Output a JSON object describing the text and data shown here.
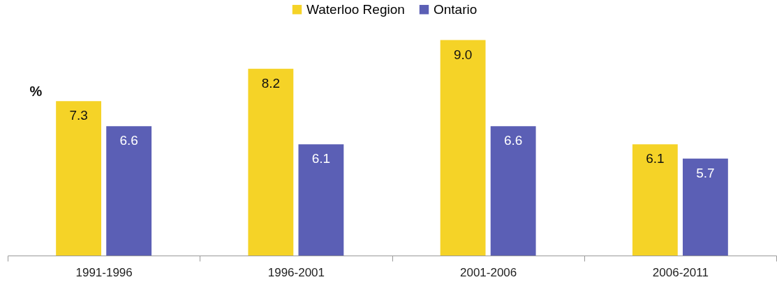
{
  "chart_data": {
    "type": "bar",
    "ylabel": "%",
    "categories": [
      "1991-1996",
      "1996-2001",
      "2001-2006",
      "2006-2011"
    ],
    "series": [
      {
        "name": "Waterloo Region",
        "color": "#f5d327",
        "values": [
          7.3,
          8.2,
          9.0,
          6.1
        ],
        "value_labels": [
          "7.3",
          "8.2",
          "9.0",
          "6.1"
        ]
      },
      {
        "name": "Ontario",
        "color": "#5b5fb5",
        "values": [
          6.6,
          6.1,
          6.6,
          5.7
        ],
        "value_labels": [
          "6.6",
          "6.1",
          "6.6",
          "5.7"
        ]
      }
    ],
    "ylim": [
      3,
      10
    ],
    "legend": "top",
    "tick_labels": "x"
  }
}
